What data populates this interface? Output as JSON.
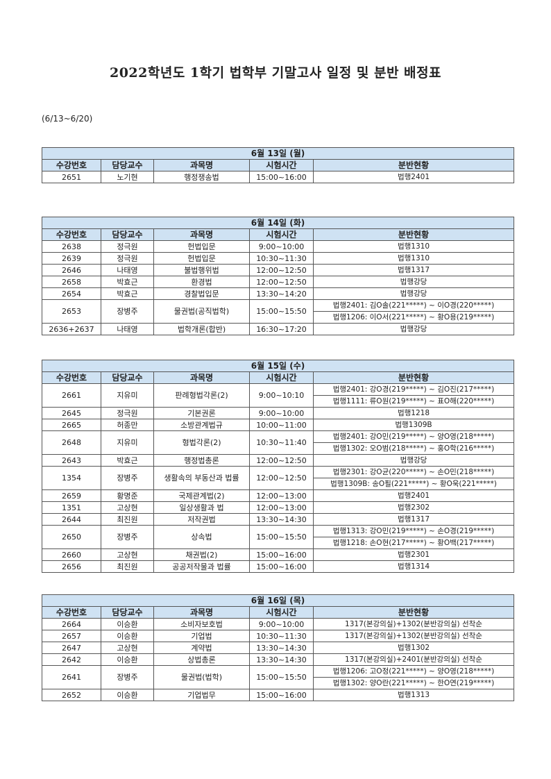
{
  "title": "2022학년도 1학기 법학부 기말고사 일정 및 분반 배정표",
  "period": "(6/13~6/20)",
  "headers": [
    "수강번호",
    "담당교수",
    "과목명",
    "시험시간",
    "분반현황"
  ],
  "days": [
    {
      "date": "6월 13일 (월)",
      "rows": [
        {
          "no": "2651",
          "prof": "노기현",
          "course": "행정쟁송법",
          "time": "15:00~16:00",
          "alloc": [
            "법행2401"
          ]
        }
      ]
    },
    {
      "date": "6월 14일 (화)",
      "rows": [
        {
          "no": "2638",
          "prof": "정극원",
          "course": "헌법입문",
          "time": "9:00~10:00",
          "alloc": [
            "법행1310"
          ]
        },
        {
          "no": "2639",
          "prof": "정극원",
          "course": "헌법입문",
          "time": "10:30~11:30",
          "alloc": [
            "법행1310"
          ]
        },
        {
          "no": "2646",
          "prof": "나태영",
          "course": "불법행위법",
          "time": "12:00~12:50",
          "alloc": [
            "법행1317"
          ]
        },
        {
          "no": "2658",
          "prof": "박효근",
          "course": "환경법",
          "time": "12:00~12:50",
          "alloc": [
            "법행강당"
          ]
        },
        {
          "no": "2654",
          "prof": "박효근",
          "course": "경찰법입문",
          "time": "13:30~14:20",
          "alloc": [
            "법행강당"
          ]
        },
        {
          "no": "2653",
          "prof": "장병주",
          "course": "물권법(공직법학)",
          "time": "15:00~15:50",
          "alloc": [
            "법행2401: 김O솔(221*****) ~ 이O경(220*****)",
            "법행1206: 이O서(221*****) ~ 황O용(219*****)"
          ]
        },
        {
          "no": "2636+2637",
          "prof": "나태영",
          "course": "법학개론(합반)",
          "time": "16:30~17:20",
          "alloc": [
            "법행강당"
          ]
        }
      ]
    },
    {
      "date": "6월 15일 (수)",
      "rows": [
        {
          "no": "2661",
          "prof": "지유미",
          "course": "판례형법각론(2)",
          "time": "9:00~10:10",
          "alloc": [
            "법행2401: 강O경(219*****) ~ 김O진(217*****)",
            "법행1111: 류O원(219*****) ~ 표O해(220*****)"
          ]
        },
        {
          "no": "2645",
          "prof": "정극원",
          "course": "기본권론",
          "time": "9:00~10:00",
          "alloc": [
            "법행1218"
          ]
        },
        {
          "no": "2665",
          "prof": "허종만",
          "course": "소방관계법규",
          "time": "10:00~11:00",
          "alloc": [
            "법행1309B"
          ]
        },
        {
          "no": "2648",
          "prof": "지유미",
          "course": "형법각론(2)",
          "time": "10:30~11:40",
          "alloc": [
            "법행2401: 강O민(219*****) ~ 양O영(218*****)",
            "법행1302: 오O범(218*****) ~ 홍O학(216*****)"
          ]
        },
        {
          "no": "2643",
          "prof": "박효근",
          "course": "행정법총론",
          "time": "12:00~12:50",
          "alloc": [
            "법행강당"
          ]
        },
        {
          "no": "1354",
          "prof": "장병주",
          "course": "생활속의 부동산과 법률",
          "time": "12:00~12:50",
          "alloc": [
            "법행2301: 강O균(220*****) ~ 손O민(218*****)",
            "법행1309B: 송O필(221*****) ~ 황O욱(221*****)"
          ]
        },
        {
          "no": "2659",
          "prof": "황명준",
          "course": "국제관계법(2)",
          "time": "12:00~13:00",
          "alloc": [
            "법행2401"
          ]
        },
        {
          "no": "1351",
          "prof": "고상현",
          "course": "일상생활과 법",
          "time": "12:00~13:00",
          "alloc": [
            "법행2302"
          ]
        },
        {
          "no": "2644",
          "prof": "최진원",
          "course": "저작권법",
          "time": "13:30~14:30",
          "alloc": [
            "법행1317"
          ]
        },
        {
          "no": "2650",
          "prof": "장병주",
          "course": "상속법",
          "time": "15:00~15:50",
          "alloc": [
            "법행1313: 강O민(219*****) ~ 손O경(219*****)",
            "법행1218: 손O현(217*****) ~ 황O백(217*****)"
          ]
        },
        {
          "no": "2660",
          "prof": "고상현",
          "course": "채권법(2)",
          "time": "15:00~16:00",
          "alloc": [
            "법행2301"
          ]
        },
        {
          "no": "2656",
          "prof": "최진원",
          "course": "공공저작물과 법률",
          "time": "15:00~16:00",
          "alloc": [
            "법행1314"
          ]
        }
      ]
    },
    {
      "date": "6월 16일 (목)",
      "rows": [
        {
          "no": "2664",
          "prof": "이승환",
          "course": "소비자보호법",
          "time": "9:00~10:00",
          "alloc": [
            "1317(본강의실)+1302(분반강의실) 선착순"
          ]
        },
        {
          "no": "2657",
          "prof": "이승환",
          "course": "기업법",
          "time": "10:30~11:30",
          "alloc": [
            "1317(본강의실)+1302(분반강의실) 선착순"
          ]
        },
        {
          "no": "2647",
          "prof": "고상현",
          "course": "계약법",
          "time": "13:30~14:30",
          "alloc": [
            "법행1302"
          ]
        },
        {
          "no": "2642",
          "prof": "이승환",
          "course": "상법총론",
          "time": "13:30~14:30",
          "alloc": [
            "1317(본강의실)+2401(분반강의실) 선착순"
          ]
        },
        {
          "no": "2641",
          "prof": "장병주",
          "course": "물권법(법학)",
          "time": "15:00~15:50",
          "alloc": [
            "법행1206: 고O정(221*****) ~ 양O영(218*****)",
            "법행1302: 양O란(221*****) ~ 한O연(219*****)"
          ]
        },
        {
          "no": "2652",
          "prof": "이승환",
          "course": "기업법무",
          "time": "15:00~16:00",
          "alloc": [
            "법행1313"
          ]
        }
      ]
    }
  ]
}
